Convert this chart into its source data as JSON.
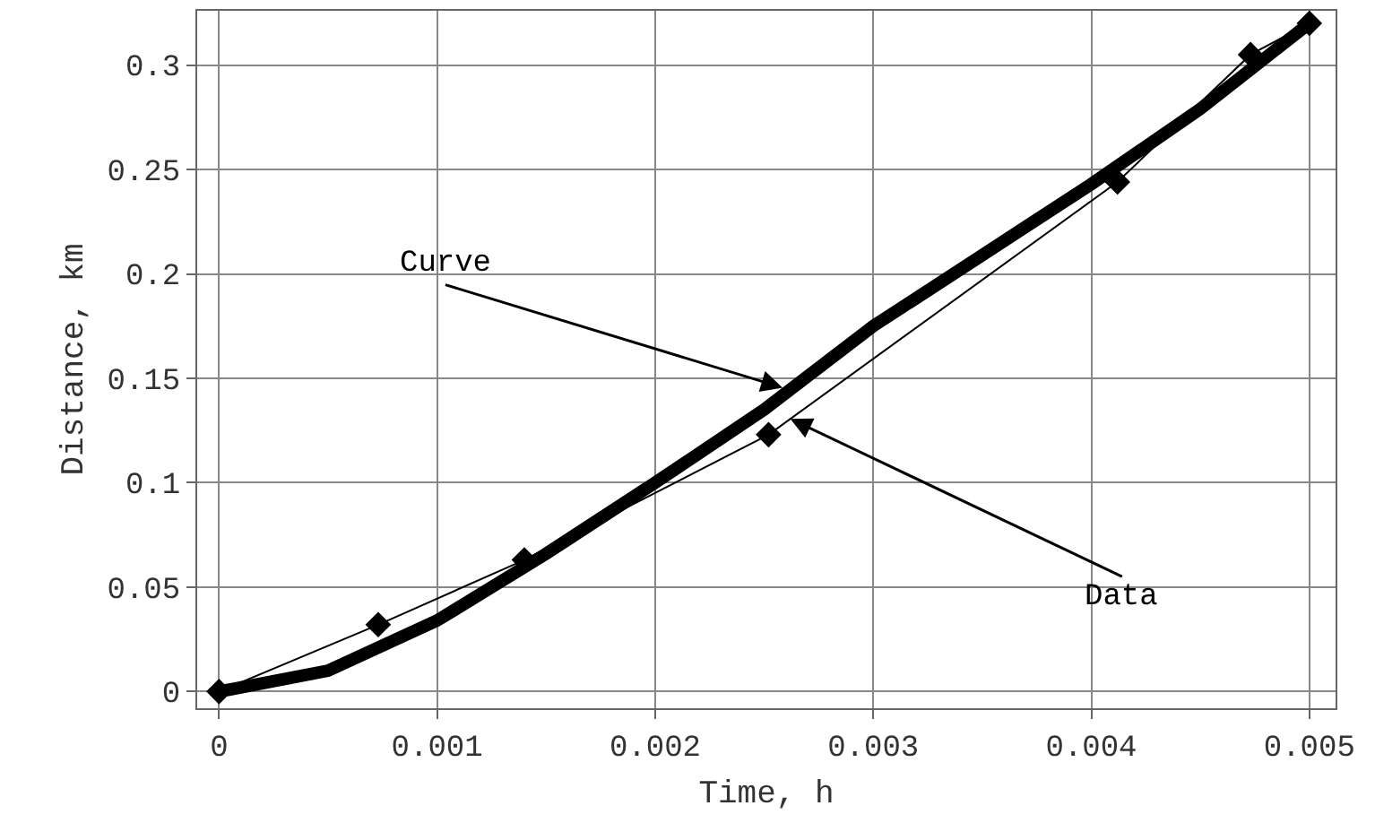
{
  "chart_data": {
    "type": "line",
    "xlabel": "Time, h",
    "ylabel": "Distance, km",
    "xlim": [
      -0.0001,
      0.00512
    ],
    "ylim": [
      -0.008,
      0.326
    ],
    "xticks": [
      0,
      0.001,
      0.002,
      0.003,
      0.004,
      0.005
    ],
    "yticks": [
      0,
      0.05,
      0.1,
      0.15,
      0.2,
      0.25,
      0.3
    ],
    "grid": true,
    "legend": false,
    "series": [
      {
        "marker": "diamond",
        "line_style": "solid",
        "color": "#000000",
        "x": [
          0,
          0.00073,
          0.0014,
          0.00252,
          0.00412,
          0.00473,
          0.005
        ],
        "values": [
          0,
          0.032,
          0.063,
          0.123,
          0.244,
          0.305,
          0.32
        ]
      },
      {
        "marker": "none",
        "line_style": "solid",
        "color": "#000000",
        "x": [
          0,
          0.0005,
          0.001,
          0.0015,
          0.002,
          0.0025,
          0.003,
          0.0035,
          0.004,
          0.0045,
          0.005
        ],
        "values": [
          0,
          0.01,
          0.034,
          0.066,
          0.1,
          0.135,
          0.175,
          0.209,
          0.243,
          0.279,
          0.32
        ]
      }
    ],
    "annotations": [
      {
        "text": "Curve",
        "x": 0.0026,
        "y": 0.145
      },
      {
        "text": "Data",
        "x": 0.00262,
        "y": 0.1306
      }
    ]
  }
}
